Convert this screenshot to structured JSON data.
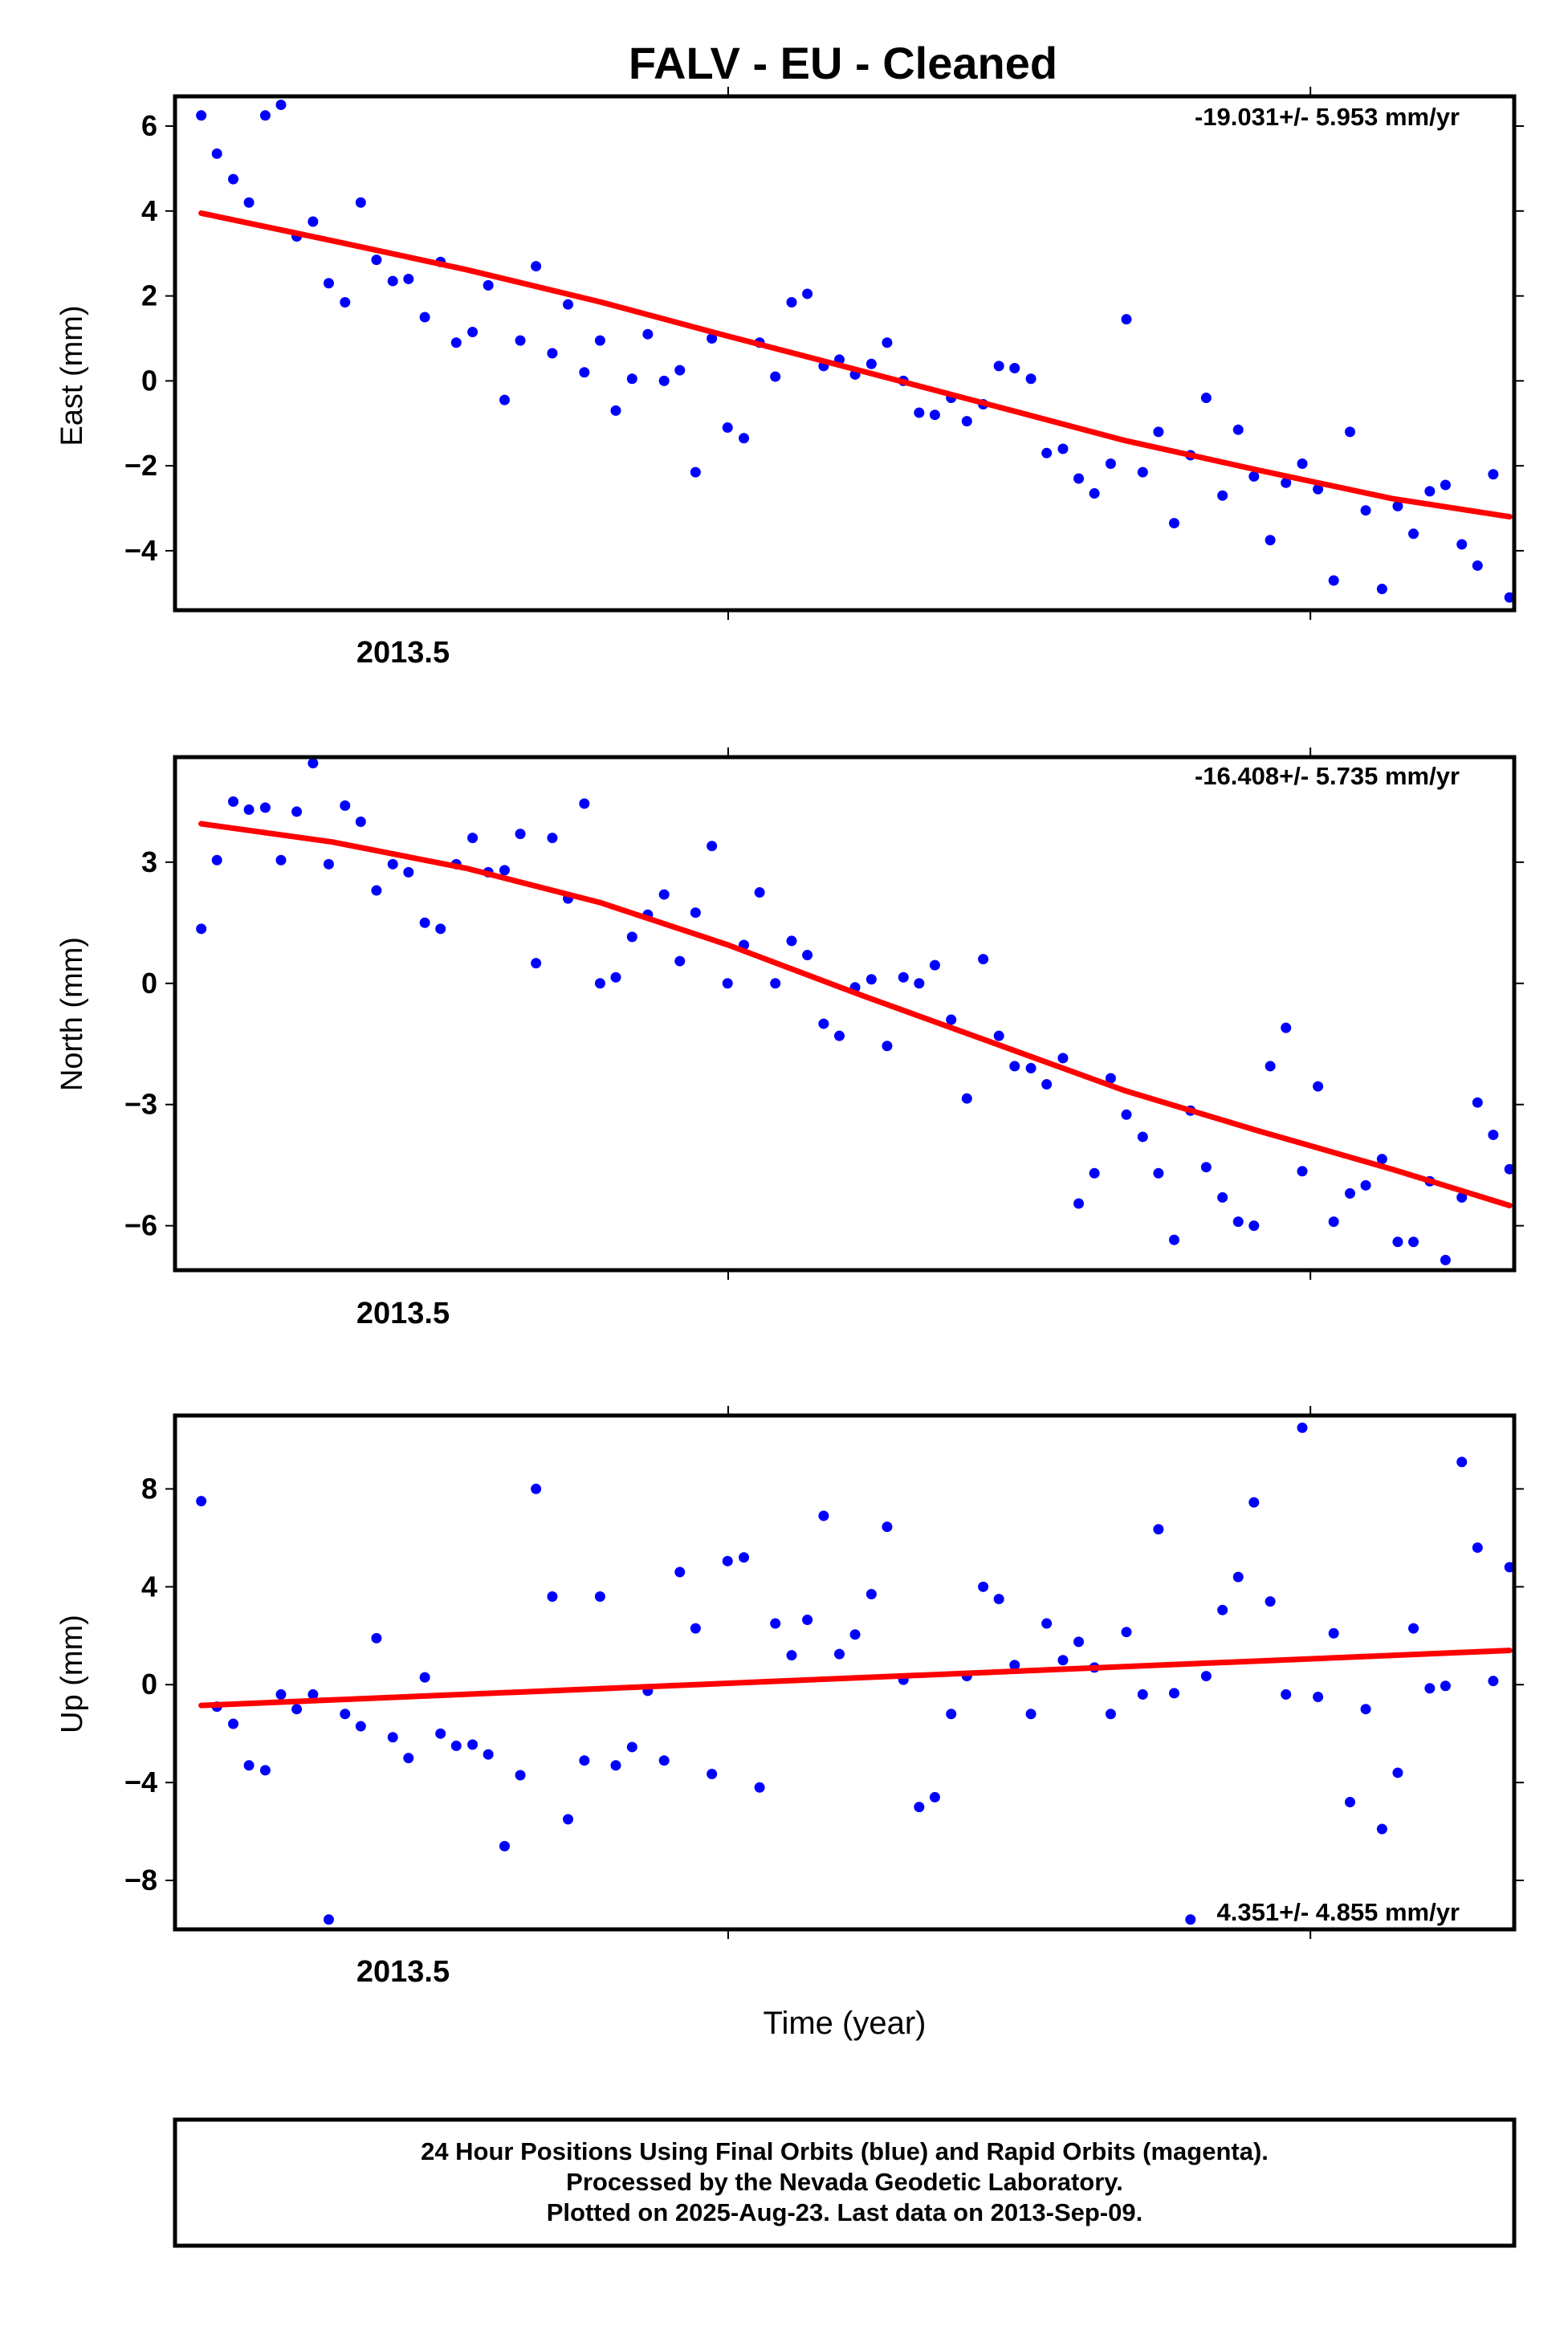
{
  "title": "FALV  - EU - Cleaned",
  "xlabel": "Time (year)",
  "x_tick_label": "2013.5",
  "footer": [
    "24 Hour Positions Using Final Orbits (blue) and Rapid Orbits (magenta).",
    "Processed by the Nevada Geodetic Laboratory.",
    "Plotted on 2025-Aug-23. Last data on 2013-Sep-09."
  ],
  "colors": {
    "points": "#0000ff",
    "fit": "#ff0000",
    "axes": "#000000"
  },
  "chart_data": [
    {
      "type": "scatter",
      "ylabel": "East (mm)",
      "rate_label": "-19.031+/- 5.953 mm/yr",
      "xlim": [
        2013.405,
        2013.635
      ],
      "ylim": [
        -5.4,
        6.7
      ],
      "yticks": [
        -4,
        -2,
        0,
        2,
        4,
        6
      ],
      "yticklabels": [
        "−4",
        "−2",
        "0",
        "2",
        "4",
        "6"
      ],
      "xticks": [
        2013.5,
        2013.6
      ],
      "xticklabels": [
        "2013.5",
        ""
      ],
      "grid": false,
      "x": [
        2013.4095,
        2013.4122,
        2013.415,
        2013.4177,
        2013.4205,
        2013.4232,
        2013.4259,
        2013.4287,
        2013.4314,
        2013.4342,
        2013.4369,
        2013.4396,
        2013.4424,
        2013.4451,
        2013.4479,
        2013.4506,
        2013.4533,
        2013.4561,
        2013.4588,
        2013.4616,
        2013.4643,
        2013.467,
        2013.4698,
        2013.4725,
        2013.4753,
        2013.478,
        2013.4807,
        2013.4835,
        2013.4862,
        2013.489,
        2013.4917,
        2013.4944,
        2013.4972,
        2013.4999,
        2013.5027,
        2013.5054,
        2013.5081,
        2013.5109,
        2013.5136,
        2013.5164,
        2013.5191,
        2013.5218,
        2013.5246,
        2013.5273,
        2013.5301,
        2013.5328,
        2013.5355,
        2013.5383,
        2013.541,
        2013.5438,
        2013.5465,
        2013.5492,
        2013.552,
        2013.5547,
        2013.5575,
        2013.5602,
        2013.5629,
        2013.5657,
        2013.5684,
        2013.5712,
        2013.5739,
        2013.5766,
        2013.5794,
        2013.5821,
        2013.5849,
        2013.5876,
        2013.5903,
        2013.5931,
        2013.5958,
        2013.5986,
        2013.6013,
        2013.604,
        2013.6068,
        2013.6095,
        2013.6123,
        2013.615,
        2013.6177,
        2013.6205,
        2013.6232,
        2013.626,
        2013.6287,
        2013.6314,
        2013.6342
      ],
      "y": [
        6.25,
        5.35,
        4.75,
        4.2,
        6.25,
        6.5,
        3.4,
        3.75,
        2.3,
        1.85,
        4.2,
        2.85,
        2.35,
        2.4,
        1.5,
        2.8,
        0.9,
        1.15,
        2.25,
        -0.45,
        0.95,
        2.7,
        0.65,
        1.8,
        0.2,
        0.95,
        -0.7,
        0.05,
        1.1,
        0,
        0.25,
        -2.15,
        1,
        -1.1,
        -1.35,
        0.9,
        0.1,
        1.85,
        2.05,
        0.35,
        0.5,
        0.15,
        0.4,
        0.9,
        0,
        -0.75,
        -0.8,
        -0.4,
        -0.95,
        -0.55,
        0.35,
        0.3,
        0.05,
        -1.7,
        -1.6,
        -2.3,
        -2.65,
        -1.95,
        1.45,
        -2.15,
        -1.2,
        -3.35,
        -1.75,
        -0.4,
        -2.7,
        -1.15,
        -2.25,
        -3.75,
        -2.4,
        -1.95,
        -2.55,
        -4.7,
        -1.2,
        -3.05,
        -4.9,
        -2.95,
        -3.6,
        -2.6,
        -2.45,
        -3.85,
        -4.35,
        -2.2,
        -5.1
      ],
      "fit": {
        "x": [
          2013.4095,
          2013.432,
          2013.455,
          2013.478,
          2013.5,
          2013.523,
          2013.546,
          2013.568,
          2013.591,
          2013.614,
          2013.6342
        ],
        "y": [
          3.95,
          3.3,
          2.62,
          1.86,
          1.05,
          0.23,
          -0.6,
          -1.4,
          -2.1,
          -2.77,
          -3.2
        ]
      }
    },
    {
      "type": "scatter",
      "ylabel": "North (mm)",
      "rate_label": "-16.408+/- 5.735 mm/yr",
      "xlim": [
        2013.405,
        2013.635
      ],
      "ylim": [
        -7.1,
        5.6
      ],
      "yticks": [
        -6,
        -3,
        0,
        3
      ],
      "yticklabels": [
        "−6",
        "−3",
        "0",
        "3"
      ],
      "xticks": [
        2013.5,
        2013.6
      ],
      "xticklabels": [
        "2013.5",
        ""
      ],
      "grid": false,
      "x": [
        2013.4095,
        2013.4122,
        2013.415,
        2013.4177,
        2013.4205,
        2013.4232,
        2013.4259,
        2013.4287,
        2013.4314,
        2013.4342,
        2013.4369,
        2013.4396,
        2013.4424,
        2013.4451,
        2013.4479,
        2013.4506,
        2013.4533,
        2013.4561,
        2013.4588,
        2013.4616,
        2013.4643,
        2013.467,
        2013.4698,
        2013.4725,
        2013.4753,
        2013.478,
        2013.4807,
        2013.4835,
        2013.4862,
        2013.489,
        2013.4917,
        2013.4944,
        2013.4972,
        2013.4999,
        2013.5027,
        2013.5054,
        2013.5081,
        2013.5109,
        2013.5136,
        2013.5164,
        2013.5191,
        2013.5218,
        2013.5246,
        2013.5273,
        2013.5301,
        2013.5328,
        2013.5355,
        2013.5383,
        2013.541,
        2013.5438,
        2013.5465,
        2013.5492,
        2013.552,
        2013.5547,
        2013.5575,
        2013.5602,
        2013.5629,
        2013.5657,
        2013.5684,
        2013.5712,
        2013.5739,
        2013.5766,
        2013.5794,
        2013.5821,
        2013.5849,
        2013.5876,
        2013.5903,
        2013.5931,
        2013.5958,
        2013.5986,
        2013.6013,
        2013.604,
        2013.6068,
        2013.6095,
        2013.6123,
        2013.615,
        2013.6177,
        2013.6205,
        2013.6232,
        2013.626,
        2013.6287,
        2013.6314,
        2013.6342
      ],
      "y": [
        1.35,
        3.05,
        4.5,
        4.3,
        4.35,
        3.05,
        4.25,
        5.45,
        2.95,
        4.4,
        4,
        2.3,
        2.95,
        2.75,
        1.5,
        1.35,
        2.95,
        3.6,
        2.75,
        2.8,
        3.7,
        0.5,
        3.6,
        2.1,
        4.45,
        0,
        0.15,
        1.15,
        1.7,
        2.2,
        0.55,
        1.75,
        3.4,
        0,
        0.95,
        2.25,
        0,
        1.05,
        0.7,
        -1,
        -1.3,
        -0.1,
        0.1,
        -1.55,
        0.15,
        0,
        0.45,
        -0.9,
        -2.85,
        0.6,
        -1.3,
        -2.05,
        -2.1,
        -2.5,
        -1.85,
        -5.45,
        -4.7,
        -2.35,
        -3.25,
        -3.8,
        -4.7,
        -6.35,
        -3.15,
        -4.55,
        -5.3,
        -5.9,
        -6,
        -2.05,
        -1.1,
        -4.65,
        -2.55,
        -5.9,
        -5.2,
        -5,
        -4.35,
        -6.4,
        -6.4,
        -4.9,
        -6.85,
        -5.3,
        -2.95,
        -3.75,
        -4.6
      ],
      "fit": {
        "x": [
          2013.4095,
          2013.432,
          2013.455,
          2013.478,
          2013.5,
          2013.523,
          2013.546,
          2013.568,
          2013.591,
          2013.614,
          2013.6342
        ],
        "y": [
          3.95,
          3.5,
          2.85,
          2.0,
          0.95,
          -0.3,
          -1.5,
          -2.65,
          -3.65,
          -4.6,
          -5.5
        ]
      }
    },
    {
      "type": "scatter",
      "ylabel": "Up (mm)",
      "rate_label": "4.351+/- 4.855 mm/yr",
      "xlim": [
        2013.405,
        2013.635
      ],
      "ylim": [
        -10,
        11
      ],
      "yticks": [
        -8,
        -4,
        0,
        4,
        8
      ],
      "yticklabels": [
        "−8",
        "−4",
        "0",
        "4",
        "8"
      ],
      "xticks": [
        2013.5,
        2013.6
      ],
      "xticklabels": [
        "2013.5",
        ""
      ],
      "grid": false,
      "x": [
        2013.4095,
        2013.4122,
        2013.415,
        2013.4177,
        2013.4205,
        2013.4232,
        2013.4259,
        2013.4287,
        2013.4314,
        2013.4342,
        2013.4369,
        2013.4396,
        2013.4424,
        2013.4451,
        2013.4479,
        2013.4506,
        2013.4533,
        2013.4561,
        2013.4588,
        2013.4616,
        2013.4643,
        2013.467,
        2013.4698,
        2013.4725,
        2013.4753,
        2013.478,
        2013.4807,
        2013.4835,
        2013.4862,
        2013.489,
        2013.4917,
        2013.4944,
        2013.4972,
        2013.4999,
        2013.5027,
        2013.5054,
        2013.5081,
        2013.5109,
        2013.5136,
        2013.5164,
        2013.5191,
        2013.5218,
        2013.5246,
        2013.5273,
        2013.5301,
        2013.5328,
        2013.5355,
        2013.5383,
        2013.541,
        2013.5438,
        2013.5465,
        2013.5492,
        2013.552,
        2013.5547,
        2013.5575,
        2013.5602,
        2013.5629,
        2013.5657,
        2013.5684,
        2013.5712,
        2013.5739,
        2013.5766,
        2013.5794,
        2013.5821,
        2013.5849,
        2013.5876,
        2013.5903,
        2013.5931,
        2013.5958,
        2013.5986,
        2013.6013,
        2013.604,
        2013.6068,
        2013.6095,
        2013.6123,
        2013.615,
        2013.6177,
        2013.6205,
        2013.6232,
        2013.626,
        2013.6287,
        2013.6314,
        2013.6342
      ],
      "y": [
        7.5,
        -0.9,
        -1.6,
        -3.3,
        -3.5,
        -0.4,
        -1,
        -0.4,
        -9.6,
        -1.2,
        -1.7,
        1.9,
        -2.15,
        -3,
        0.3,
        -2,
        -2.5,
        -2.45,
        -2.85,
        -6.6,
        -3.7,
        8,
        3.6,
        -5.5,
        -3.1,
        3.6,
        -3.3,
        -2.55,
        -0.25,
        -3.1,
        4.6,
        2.3,
        -3.65,
        5.05,
        5.2,
        -4.2,
        2.5,
        1.2,
        2.65,
        6.9,
        1.25,
        2.05,
        3.7,
        6.45,
        0.2,
        -5,
        -4.6,
        -1.2,
        0.35,
        4,
        3.5,
        0.8,
        -1.2,
        2.5,
        1,
        1.75,
        0.7,
        -1.2,
        2.15,
        -0.4,
        6.35,
        -0.35,
        -9.6,
        0.35,
        3.05,
        4.4,
        7.45,
        3.4,
        -0.4,
        10.5,
        -0.5,
        2.1,
        -4.8,
        -1,
        -5.9,
        -3.6,
        2.3,
        -0.15,
        -0.05,
        9.1,
        5.6,
        0.15,
        4.8
      ],
      "fit": {
        "x": [
          2013.4095,
          2013.6342
        ],
        "y": [
          -0.85,
          1.4
        ]
      }
    }
  ]
}
